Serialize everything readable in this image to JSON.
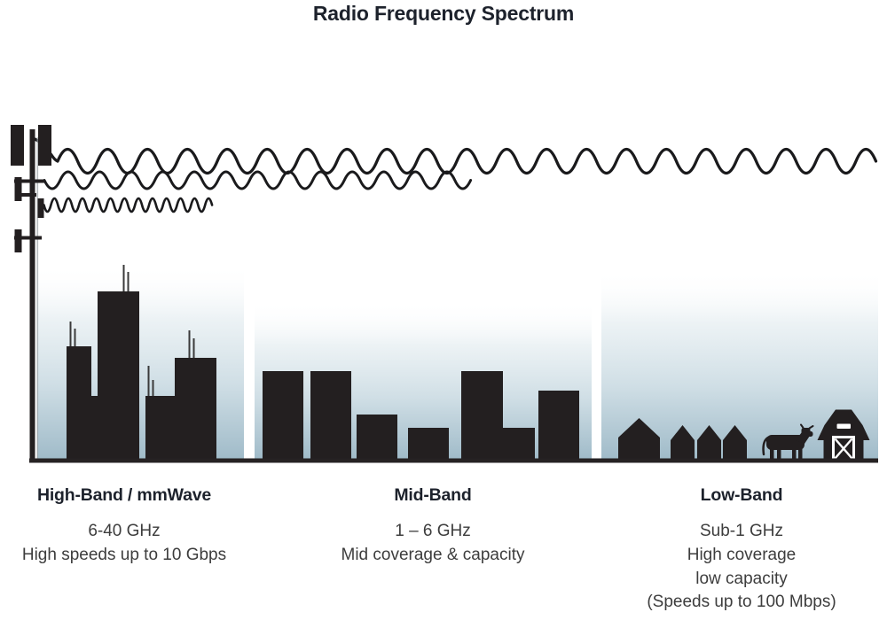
{
  "title": "Radio Frequency Spectrum",
  "colors": {
    "background": "#ffffff",
    "silhouette": "#231f20",
    "wave": "#1a1a1c",
    "baseline": "#262223",
    "heading": "#1d222c",
    "body": "#3d3d3d",
    "gradient-top": "#ffffff",
    "gradient-mid": "#cfdee5",
    "gradient-bottom": "#a0bbc9",
    "barn-cutout": "#ffffff"
  },
  "bands": [
    {
      "id": "high-band",
      "heading": "High-Band / mmWave",
      "lines": [
        "6-40 GHz",
        "High speeds up to 10 Gbps"
      ]
    },
    {
      "id": "mid-band",
      "heading": "Mid-Band",
      "lines": [
        "1 – 6 GHz",
        "Mid coverage & capacity"
      ]
    },
    {
      "id": "low-band",
      "heading": "Low-Band",
      "lines": [
        "Sub-1 GHz",
        "High coverage",
        "low capacity",
        "(Speeds up to 100 Mbps)"
      ]
    }
  ]
}
